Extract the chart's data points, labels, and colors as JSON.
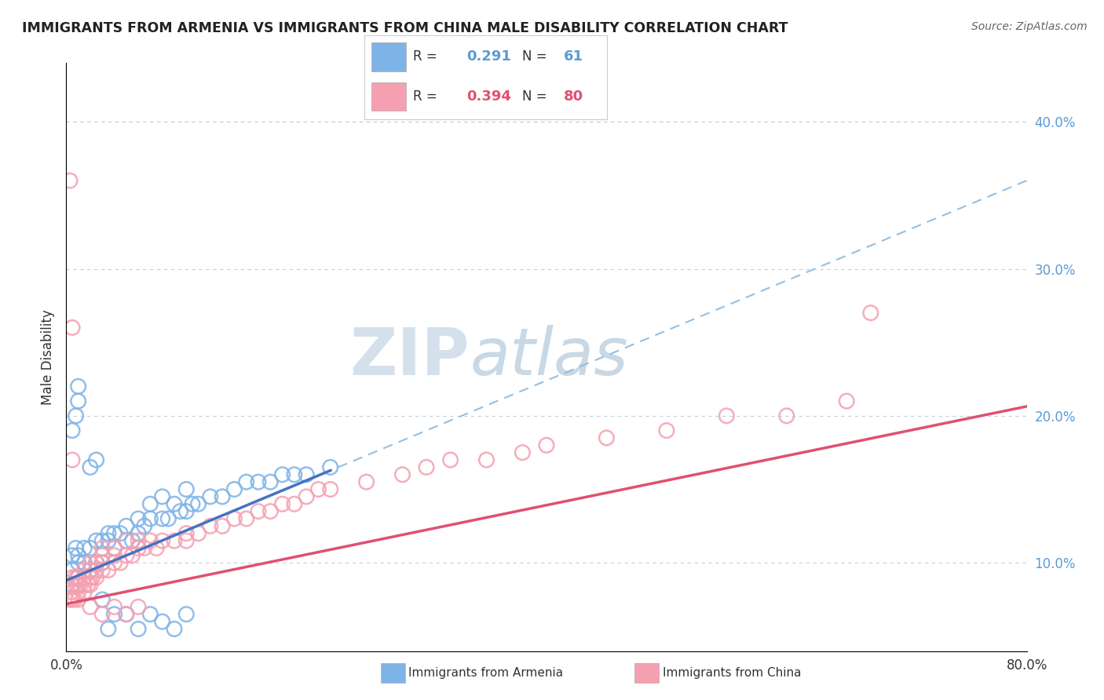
{
  "title": "IMMIGRANTS FROM ARMENIA VS IMMIGRANTS FROM CHINA MALE DISABILITY CORRELATION CHART",
  "source": "Source: ZipAtlas.com",
  "ylabel": "Male Disability",
  "xlim": [
    0.0,
    0.8
  ],
  "ylim": [
    0.04,
    0.44
  ],
  "xticks": [
    0.0,
    0.1,
    0.2,
    0.3,
    0.4,
    0.5,
    0.6,
    0.7,
    0.8
  ],
  "yticks_right": [
    0.1,
    0.2,
    0.3,
    0.4
  ],
  "ytick_right_labels": [
    "10.0%",
    "20.0%",
    "30.0%",
    "40.0%"
  ],
  "armenia_R": 0.291,
  "armenia_N": 61,
  "china_R": 0.394,
  "china_N": 80,
  "armenia_color": "#7EB3E8",
  "china_color": "#F4A0B0",
  "armenia_line_color": "#4472C4",
  "china_line_color": "#E05070",
  "dashed_line_color": "#95C0E0",
  "watermark_zip": "ZIP",
  "watermark_atlas": "atlas",
  "armenia_x": [
    0.005,
    0.005,
    0.005,
    0.008,
    0.01,
    0.01,
    0.015,
    0.015,
    0.02,
    0.02,
    0.025,
    0.025,
    0.03,
    0.03,
    0.035,
    0.035,
    0.04,
    0.04,
    0.045,
    0.05,
    0.05,
    0.055,
    0.06,
    0.06,
    0.065,
    0.07,
    0.07,
    0.08,
    0.08,
    0.085,
    0.09,
    0.095,
    0.1,
    0.1,
    0.105,
    0.11,
    0.12,
    0.13,
    0.14,
    0.15,
    0.16,
    0.17,
    0.18,
    0.19,
    0.2,
    0.22,
    0.005,
    0.008,
    0.01,
    0.01,
    0.02,
    0.025,
    0.03,
    0.035,
    0.04,
    0.05,
    0.06,
    0.07,
    0.08,
    0.09,
    0.1
  ],
  "armenia_y": [
    0.085,
    0.095,
    0.105,
    0.11,
    0.1,
    0.105,
    0.1,
    0.11,
    0.095,
    0.11,
    0.1,
    0.115,
    0.1,
    0.115,
    0.115,
    0.12,
    0.11,
    0.12,
    0.12,
    0.115,
    0.125,
    0.115,
    0.12,
    0.13,
    0.125,
    0.13,
    0.14,
    0.13,
    0.145,
    0.13,
    0.14,
    0.135,
    0.135,
    0.15,
    0.14,
    0.14,
    0.145,
    0.145,
    0.15,
    0.155,
    0.155,
    0.155,
    0.16,
    0.16,
    0.16,
    0.165,
    0.19,
    0.2,
    0.21,
    0.22,
    0.165,
    0.17,
    0.075,
    0.055,
    0.065,
    0.065,
    0.055,
    0.065,
    0.06,
    0.055,
    0.065
  ],
  "china_x": [
    0.003,
    0.005,
    0.005,
    0.005,
    0.007,
    0.008,
    0.008,
    0.01,
    0.01,
    0.01,
    0.01,
    0.012,
    0.015,
    0.015,
    0.015,
    0.015,
    0.018,
    0.02,
    0.02,
    0.02,
    0.02,
    0.022,
    0.025,
    0.025,
    0.025,
    0.03,
    0.03,
    0.03,
    0.03,
    0.035,
    0.04,
    0.04,
    0.04,
    0.045,
    0.05,
    0.05,
    0.055,
    0.06,
    0.06,
    0.065,
    0.07,
    0.075,
    0.08,
    0.09,
    0.1,
    0.1,
    0.11,
    0.12,
    0.13,
    0.14,
    0.15,
    0.16,
    0.17,
    0.18,
    0.19,
    0.2,
    0.21,
    0.22,
    0.25,
    0.28,
    0.3,
    0.32,
    0.35,
    0.38,
    0.4,
    0.45,
    0.5,
    0.55,
    0.6,
    0.65,
    0.67,
    0.003,
    0.005,
    0.005,
    0.01,
    0.02,
    0.03,
    0.04,
    0.05,
    0.06
  ],
  "china_y": [
    0.075,
    0.075,
    0.08,
    0.09,
    0.075,
    0.085,
    0.09,
    0.075,
    0.08,
    0.085,
    0.09,
    0.085,
    0.08,
    0.085,
    0.09,
    0.095,
    0.085,
    0.085,
    0.09,
    0.095,
    0.1,
    0.09,
    0.09,
    0.095,
    0.1,
    0.095,
    0.1,
    0.105,
    0.11,
    0.095,
    0.1,
    0.105,
    0.11,
    0.1,
    0.105,
    0.115,
    0.105,
    0.11,
    0.115,
    0.11,
    0.115,
    0.11,
    0.115,
    0.115,
    0.12,
    0.115,
    0.12,
    0.125,
    0.125,
    0.13,
    0.13,
    0.135,
    0.135,
    0.14,
    0.14,
    0.145,
    0.15,
    0.15,
    0.155,
    0.16,
    0.165,
    0.17,
    0.17,
    0.175,
    0.18,
    0.185,
    0.19,
    0.2,
    0.2,
    0.21,
    0.27,
    0.36,
    0.26,
    0.17,
    0.09,
    0.07,
    0.065,
    0.07,
    0.065,
    0.07
  ]
}
